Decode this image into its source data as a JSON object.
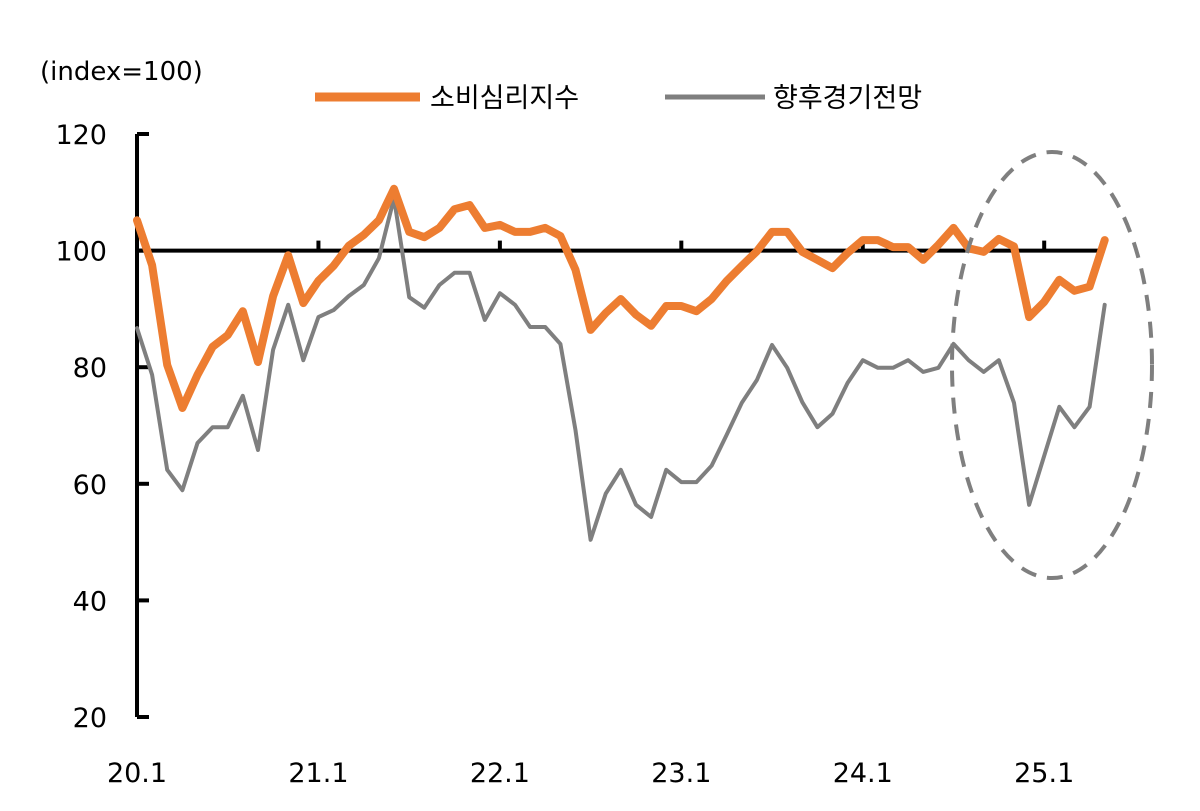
{
  "chart_data": {
    "type": "line",
    "unit_label": "(index=100)",
    "ylim": [
      20,
      120
    ],
    "yticks": [
      20,
      40,
      60,
      80,
      100,
      120
    ],
    "reference_line": 100,
    "x_start": "2020.1",
    "x_tick_labels": [
      "20.1",
      "21.1",
      "22.1",
      "23.1",
      "24.1",
      "25.1"
    ],
    "legend_position": "top",
    "annotation": "dashed ellipse highlighting 24.8–25.5",
    "colors": {
      "consumer_sentiment": "#ED7D31",
      "economic_outlook": "#7F7F7F"
    },
    "series": [
      {
        "name": "소비심리지수",
        "color": "#ED7D31",
        "values": [
          105.2,
          97.5,
          80.4,
          73.0,
          78.7,
          83.5,
          85.5,
          89.6,
          80.9,
          92.2,
          99.2,
          91.0,
          94.8,
          97.4,
          100.8,
          102.7,
          105.2,
          110.6,
          103.2,
          102.3,
          103.9,
          107.1,
          107.8,
          103.9,
          104.4,
          103.2,
          103.2,
          103.9,
          102.5,
          96.7,
          86.4,
          89.3,
          91.7,
          89.0,
          87.1,
          90.5,
          90.5,
          89.6,
          91.7,
          94.8,
          97.4,
          99.9,
          103.2,
          103.2,
          99.8,
          98.4,
          97.0,
          99.6,
          101.8,
          101.8,
          100.6,
          100.6,
          98.4,
          101.0,
          103.9,
          100.4,
          99.8,
          102.0,
          100.7,
          88.6,
          91.2,
          95.0,
          93.1,
          93.8,
          101.8
        ]
      },
      {
        "name": "향후경기전망",
        "color": "#7F7F7F",
        "values": [
          86.7,
          78.7,
          62.4,
          58.9,
          67.0,
          69.7,
          69.7,
          75.1,
          65.8,
          83.0,
          90.7,
          81.2,
          88.6,
          89.8,
          92.2,
          94.1,
          98.7,
          109.0,
          92.0,
          90.2,
          94.1,
          96.2,
          96.2,
          88.1,
          92.7,
          90.7,
          86.9,
          86.9,
          84.0,
          69.2,
          50.4,
          58.3,
          62.4,
          56.4,
          54.3,
          62.4,
          60.3,
          60.3,
          63.1,
          68.4,
          73.9,
          77.8,
          83.8,
          79.9,
          74.0,
          69.7,
          72.0,
          77.3,
          81.2,
          79.9,
          79.9,
          81.2,
          79.2,
          79.9,
          84.0,
          81.2,
          79.2,
          81.2,
          73.9,
          56.4,
          64.8,
          73.2,
          69.7,
          73.2,
          90.7
        ]
      }
    ]
  }
}
